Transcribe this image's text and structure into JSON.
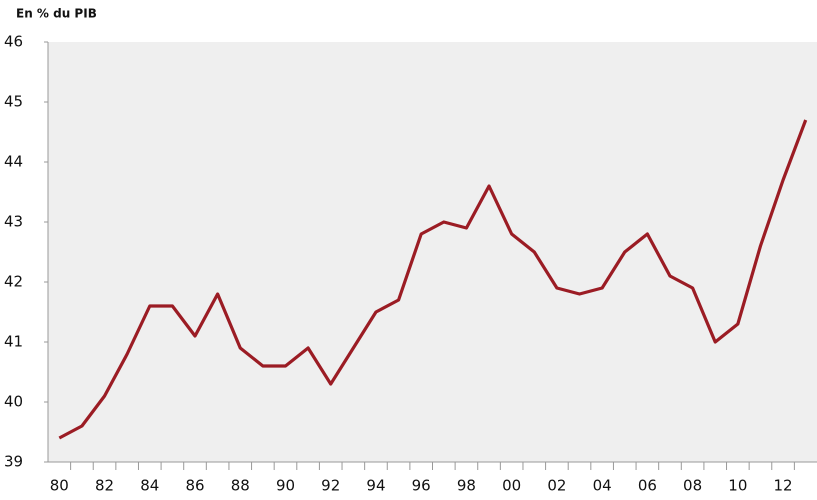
{
  "chart_data": {
    "type": "line",
    "y_label": "En % du PIB",
    "categories": [
      "80",
      null,
      "82",
      null,
      "84",
      null,
      "86",
      null,
      "88",
      null,
      "90",
      null,
      "92",
      null,
      "94",
      null,
      "96",
      null,
      "98",
      null,
      "00",
      null,
      "02",
      null,
      "04",
      null,
      "06",
      null,
      "08",
      null,
      "10",
      null,
      "12",
      null
    ],
    "series": [
      {
        "name": null,
        "color": "#9b1c24",
        "values": [
          39.4,
          39.6,
          40.1,
          40.8,
          41.6,
          41.6,
          41.1,
          41.8,
          40.9,
          40.6,
          40.6,
          40.9,
          40.3,
          40.9,
          41.5,
          41.7,
          42.8,
          43.0,
          42.9,
          43.6,
          42.8,
          42.5,
          41.9,
          41.8,
          41.9,
          42.5,
          42.8,
          42.1,
          41.9,
          41.0,
          41.3,
          42.6,
          43.7,
          44.7
        ]
      }
    ],
    "ylim": [
      39,
      46
    ],
    "yticks": [
      39,
      40,
      41,
      42,
      43,
      44,
      45,
      46
    ],
    "grid": false
  }
}
